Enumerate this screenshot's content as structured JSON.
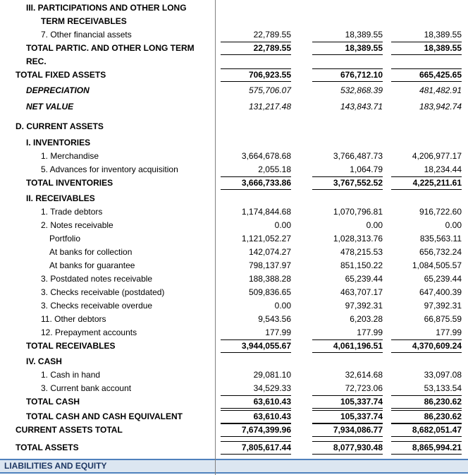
{
  "colors": {
    "band_background": "#dce6f1",
    "band_border": "#4f81bd",
    "band_text": "#1f3864",
    "column_divider": "#808080",
    "total_rule": "#000000"
  },
  "rows": [
    {
      "label": "III. PARTICIPATIONS AND OTHER LONG",
      "label2": "TERM RECEIVABLES"
    },
    {
      "label": "7. Other financial assets",
      "values": [
        "22,789.55",
        "18,389.55",
        "18,389.55"
      ]
    },
    {
      "label": "TOTAL PARTIC. AND OTHER LONG TERM",
      "label2": "REC.",
      "values": [
        "22,789.55",
        "18,389.55",
        "18,389.55"
      ]
    },
    {
      "label": "TOTAL FIXED ASSETS",
      "values": [
        "706,923.55",
        "676,712.10",
        "665,425.65"
      ]
    },
    {
      "label": "DEPRECIATION",
      "values": [
        "575,706.07",
        "532,868.39",
        "481,482.91"
      ]
    },
    {
      "label": "NET VALUE",
      "values": [
        "131,217.48",
        "143,843.71",
        "183,942.74"
      ]
    },
    {
      "label": "D. CURRENT ASSETS"
    },
    {
      "label": "I. INVENTORIES"
    },
    {
      "label": "1. Merchandise",
      "values": [
        "3,664,678.68",
        "3,766,487.73",
        "4,206,977.17"
      ]
    },
    {
      "label": "5. Advances for inventory acquisition",
      "values": [
        "2,055.18",
        "1,064.79",
        "18,234.44"
      ]
    },
    {
      "label": "TOTAL INVENTORIES",
      "values": [
        "3,666,733.86",
        "3,767,552.52",
        "4,225,211.61"
      ]
    },
    {
      "label": "II. RECEIVABLES"
    },
    {
      "label": "1. Trade debtors",
      "values": [
        "1,174,844.68",
        "1,070,796.81",
        "916,722.60"
      ]
    },
    {
      "label": "2. Notes receivable",
      "values": [
        "0.00",
        "0.00",
        "0.00"
      ]
    },
    {
      "label": "Portfolio",
      "values": [
        "1,121,052.27",
        "1,028,313.76",
        "835,563.11"
      ]
    },
    {
      "label": "At banks for collection",
      "values": [
        "142,074.27",
        "478,215.53",
        "656,732.24"
      ]
    },
    {
      "label": "At banks for guarantee",
      "values": [
        "798,137.97",
        "851,150.22",
        "1,084,505.57"
      ]
    },
    {
      "label": "3. Postdated notes receivable",
      "values": [
        "188,388.28",
        "65,239.44",
        "65,239.44"
      ]
    },
    {
      "label": "3. Checks receivable (postdated)",
      "values": [
        "509,836.65",
        "463,707.17",
        "647,400.39"
      ]
    },
    {
      "label": "3. Checks receivable overdue",
      "values": [
        "0.00",
        "97,392.31",
        "97,392.31"
      ]
    },
    {
      "label": "11. Other debtors",
      "values": [
        "9,543.56",
        "6,203.28",
        "66,875.59"
      ]
    },
    {
      "label": "12. Prepayment accounts",
      "values": [
        "177.99",
        "177.99",
        "177.99"
      ]
    },
    {
      "label": "TOTAL RECEIVABLES",
      "values": [
        "3,944,055.67",
        "4,061,196.51",
        "4,370,609.24"
      ]
    },
    {
      "label": "IV. CASH"
    },
    {
      "label": "1. Cash in hand",
      "values": [
        "29,081.10",
        "32,614.68",
        "33,097.08"
      ]
    },
    {
      "label": "3. Current bank account",
      "values": [
        "34,529.33",
        "72,723.06",
        "53,133.54"
      ]
    },
    {
      "label": "TOTAL CASH",
      "values": [
        "63,610.43",
        "105,337.74",
        "86,230.62"
      ]
    },
    {
      "label": "TOTAL CASH AND CASH EQUIVALENT",
      "values": [
        "63,610.43",
        "105,337.74",
        "86,230.62"
      ]
    },
    {
      "label": "CURRENT ASSETS TOTAL",
      "values": [
        "7,674,399.96",
        "7,934,086.77",
        "8,682,051.47"
      ]
    },
    {
      "label": "TOTAL ASSETS",
      "values": [
        "7,805,617.44",
        "8,077,930.48",
        "8,865,994.21"
      ]
    },
    {
      "label": "LIABILITIES AND EQUITY"
    }
  ]
}
